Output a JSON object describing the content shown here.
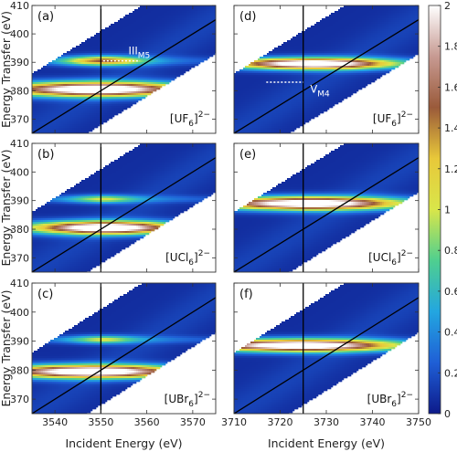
{
  "chart_data": [
    {
      "type": "heatmap",
      "panel_label": "(a)",
      "compound": "[UF6]2−",
      "xlabel": "",
      "ylabel": "Energy Transfer (eV)",
      "xlim": [
        3535,
        3575
      ],
      "ylim": [
        365,
        410
      ],
      "x_ticks": [],
      "y_ticks": [
        "370",
        "380",
        "390",
        "400",
        "410"
      ],
      "vertical_line_x": 3550,
      "diagonal_line": {
        "x0": 3535,
        "y0": 365
      },
      "features": [
        {
          "x": 3549,
          "y": 380.5,
          "intensity": 2.0,
          "wx": 14,
          "wy": 1.8
        },
        {
          "x": 3550.5,
          "y": 390.5,
          "intensity": 1.1,
          "wx": 6,
          "wy": 1.2
        }
      ],
      "annotation": {
        "text": "III",
        "sub": "M5",
        "x": 3557,
        "y": 391.5
      }
    },
    {
      "type": "heatmap",
      "panel_label": "(d)",
      "compound": "[UF6]2−",
      "xlabel": "",
      "ylabel": "",
      "xlim": [
        3710,
        3750
      ],
      "ylim": [
        365,
        410
      ],
      "x_ticks": [],
      "y_ticks": [],
      "vertical_line_x": 3725,
      "diagonal_line": {
        "x0": 3710,
        "y0": 365
      },
      "features": [
        {
          "x": 3727,
          "y": 389.5,
          "intensity": 2.0,
          "wx": 12,
          "wy": 1.4
        }
      ],
      "annotation": {
        "text": "V",
        "sub": "M4",
        "x": 3726.5,
        "y": 380
      }
    },
    {
      "type": "heatmap",
      "panel_label": "(b)",
      "compound": "[UCl6]2−",
      "xlabel": "",
      "ylabel": "Energy Transfer (eV)",
      "xlim": [
        3535,
        3575
      ],
      "ylim": [
        365,
        410
      ],
      "x_ticks": [],
      "y_ticks": [
        "370",
        "380",
        "390",
        "400",
        "410"
      ],
      "vertical_line_x": 3550,
      "diagonal_line": {
        "x0": 3535,
        "y0": 365
      },
      "features": [
        {
          "x": 3551,
          "y": 380.5,
          "intensity": 2.0,
          "wx": 11,
          "wy": 1.6
        },
        {
          "x": 3550.5,
          "y": 390.5,
          "intensity": 0.6,
          "wx": 5,
          "wy": 1.0
        }
      ],
      "annotation": null
    },
    {
      "type": "heatmap",
      "panel_label": "(e)",
      "compound": "[UCl6]2−",
      "xlabel": "",
      "ylabel": "",
      "xlim": [
        3710,
        3750
      ],
      "ylim": [
        365,
        410
      ],
      "x_ticks": [],
      "y_ticks": [],
      "vertical_line_x": 3725,
      "diagonal_line": {
        "x0": 3710,
        "y0": 365
      },
      "features": [
        {
          "x": 3726,
          "y": 389,
          "intensity": 2.0,
          "wx": 14,
          "wy": 1.6
        }
      ],
      "annotation": null
    },
    {
      "type": "heatmap",
      "panel_label": "(c)",
      "compound": "[UBr6]2−",
      "xlabel": "Incident Energy (eV)",
      "ylabel": "Energy Transfer (eV)",
      "xlim": [
        3535,
        3575
      ],
      "ylim": [
        365,
        410
      ],
      "x_ticks": [
        "3540",
        "3550",
        "3560",
        "3570"
      ],
      "y_ticks": [
        "370",
        "380",
        "390",
        "400",
        "410"
      ],
      "vertical_line_x": 3550,
      "diagonal_line": {
        "x0": 3535,
        "y0": 365
      },
      "features": [
        {
          "x": 3548,
          "y": 379.5,
          "intensity": 2.0,
          "wx": 14,
          "wy": 1.6
        },
        {
          "x": 3550.5,
          "y": 390.5,
          "intensity": 0.6,
          "wx": 5,
          "wy": 1.0
        }
      ],
      "annotation": null
    },
    {
      "type": "heatmap",
      "panel_label": "(f)",
      "compound": "[UBr6]2−",
      "xlabel": "Incident Energy (eV)",
      "ylabel": "",
      "xlim": [
        3710,
        3750
      ],
      "ylim": [
        365,
        410
      ],
      "x_ticks": [
        "3710",
        "3720",
        "3730",
        "3740",
        "3750"
      ],
      "y_ticks": [],
      "vertical_line_x": 3725,
      "diagonal_line": {
        "x0": 3710,
        "y0": 365
      },
      "features": [
        {
          "x": 3724,
          "y": 388.5,
          "intensity": 2.0,
          "wx": 15,
          "wy": 1.5
        }
      ],
      "annotation": null
    }
  ],
  "colorbar": {
    "range": [
      0,
      2
    ],
    "ticks": [
      "0",
      "0.2",
      "0.4",
      "0.6",
      "0.8",
      "1",
      "1.2",
      "1.4",
      "1.6",
      "1.8",
      "2"
    ],
    "stops": [
      "#0d1a8a",
      "#1f5fd6",
      "#23a6e0",
      "#4fcf8f",
      "#d9e64a",
      "#e8c83a",
      "#9a5a3a",
      "#c79a92",
      "#ffffff"
    ]
  }
}
